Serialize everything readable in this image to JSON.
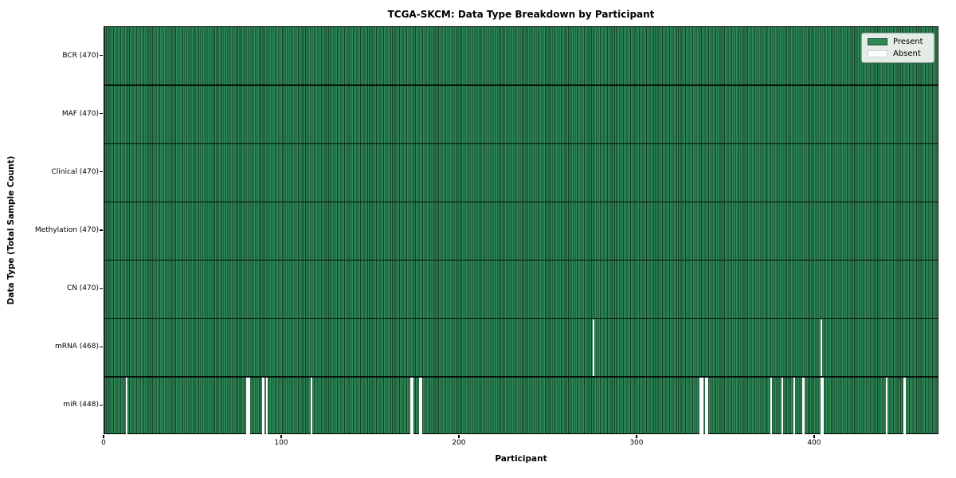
{
  "figure": {
    "title": "TCGA-SKCM: Data Type Breakdown by Participant",
    "xlabel": "Participant",
    "ylabel": "Data Type (Total Sample Count)"
  },
  "colors": {
    "present": "#2e8b57",
    "present_edge": "#16402a",
    "absent": "#ffffff",
    "plot_border": "#000000",
    "legend_bg": "#e4ece6"
  },
  "chart_data": {
    "type": "heatmap",
    "title": "TCGA-SKCM: Data Type Breakdown by Participant",
    "xlabel": "Participant",
    "ylabel": "Data Type (Total Sample Count)",
    "x_range": [
      0,
      470
    ],
    "n_participants": 470,
    "x_ticks": [
      0,
      100,
      200,
      300,
      400
    ],
    "grid": "row-dividers",
    "legend_position": "upper right",
    "legend": [
      {
        "label": "Present",
        "color": "#2e8b57"
      },
      {
        "label": "Absent",
        "color": "#ffffff"
      }
    ],
    "rows": [
      {
        "label": "BCR (470)",
        "data_type": "BCR",
        "total": 470,
        "absent_participants": []
      },
      {
        "label": "MAF (470)",
        "data_type": "MAF",
        "total": 470,
        "absent_participants": []
      },
      {
        "label": "Clinical (470)",
        "data_type": "Clinical",
        "total": 470,
        "absent_participants": []
      },
      {
        "label": "Methylation (470)",
        "data_type": "Methylation",
        "total": 470,
        "absent_participants": []
      },
      {
        "label": "CN (470)",
        "data_type": "CN",
        "total": 470,
        "absent_participants": []
      },
      {
        "label": "mRNA (468)",
        "data_type": "mRNA",
        "total": 468,
        "absent_participants": [
          275,
          403
        ]
      },
      {
        "label": "miR (448)",
        "data_type": "miR",
        "total": 448,
        "absent_participants": [
          12,
          80,
          81,
          89,
          91,
          116,
          172,
          173,
          177,
          178,
          335,
          336,
          338,
          339,
          375,
          381,
          388,
          393,
          403,
          404,
          440,
          450
        ]
      }
    ]
  }
}
